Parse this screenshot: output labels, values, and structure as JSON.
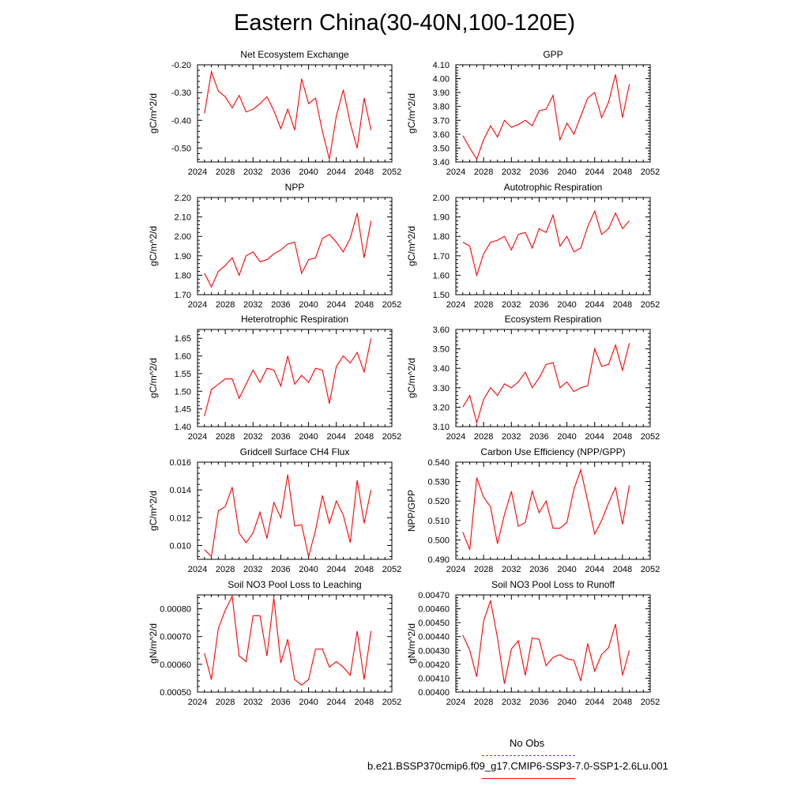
{
  "title": "Eastern China(30-40N,100-120E)",
  "legend": {
    "obs_label": "No Obs",
    "obs_color": "#4a4ad0",
    "model_label": "b.e21.BSSP370cmip6.f09_g17.CMIP6-SSP3-7.0-SSP1-2.6Lu.001",
    "model_color": "#ff0000"
  },
  "chart_data": [
    {
      "type": "line",
      "title": "Net Ecosystem Exchange",
      "ylabel": "gC/m^2/d",
      "xlim": [
        2024,
        2052
      ],
      "xticks": [
        "2024",
        "2028",
        "2032",
        "2036",
        "2040",
        "2044",
        "2048",
        "2052"
      ],
      "ylim": [
        -0.55,
        -0.2
      ],
      "yticks": [
        "-0.20",
        "-0.30",
        "-0.40",
        "-0.50"
      ],
      "x": [
        2025,
        2026,
        2027,
        2028,
        2029,
        2030,
        2031,
        2032,
        2033,
        2034,
        2035,
        2036,
        2037,
        2038,
        2039,
        2040,
        2041,
        2042,
        2043,
        2044,
        2045,
        2046,
        2047,
        2048,
        2049
      ],
      "series": [
        {
          "values": [
            -0.375,
            -0.225,
            -0.295,
            -0.315,
            -0.355,
            -0.31,
            -0.37,
            -0.36,
            -0.34,
            -0.315,
            -0.365,
            -0.43,
            -0.36,
            -0.435,
            -0.25,
            -0.34,
            -0.32,
            -0.44,
            -0.54,
            -0.385,
            -0.29,
            -0.41,
            -0.5,
            -0.32,
            -0.435
          ]
        }
      ]
    },
    {
      "type": "line",
      "title": "GPP",
      "ylabel": "gC/m^2/d",
      "xlim": [
        2024,
        2052
      ],
      "xticks": [
        "2024",
        "2028",
        "2032",
        "2036",
        "2040",
        "2044",
        "2048",
        "2052"
      ],
      "ylim": [
        3.4,
        4.1
      ],
      "yticks": [
        "3.40",
        "3.50",
        "3.60",
        "3.70",
        "3.80",
        "3.90",
        "4.00",
        "4.10"
      ],
      "x": [
        2025,
        2026,
        2027,
        2028,
        2029,
        2030,
        2031,
        2032,
        2033,
        2034,
        2035,
        2036,
        2037,
        2038,
        2039,
        2040,
        2041,
        2042,
        2043,
        2044,
        2045,
        2046,
        2047,
        2048,
        2049
      ],
      "series": [
        {
          "values": [
            3.59,
            3.5,
            3.42,
            3.56,
            3.66,
            3.58,
            3.7,
            3.65,
            3.67,
            3.7,
            3.66,
            3.77,
            3.78,
            3.88,
            3.56,
            3.68,
            3.6,
            3.73,
            3.86,
            3.9,
            3.72,
            3.83,
            4.03,
            3.72,
            3.96
          ]
        }
      ]
    },
    {
      "type": "line",
      "title": "NPP",
      "ylabel": "gC/m^2/d",
      "xlim": [
        2024,
        2052
      ],
      "xticks": [
        "2024",
        "2028",
        "2032",
        "2036",
        "2040",
        "2044",
        "2048",
        "2052"
      ],
      "ylim": [
        1.7,
        2.2
      ],
      "yticks": [
        "1.70",
        "1.80",
        "1.90",
        "2.00",
        "2.10",
        "2.20"
      ],
      "x": [
        2025,
        2026,
        2027,
        2028,
        2029,
        2030,
        2031,
        2032,
        2033,
        2034,
        2035,
        2036,
        2037,
        2038,
        2039,
        2040,
        2041,
        2042,
        2043,
        2044,
        2045,
        2046,
        2047,
        2048,
        2049
      ],
      "series": [
        {
          "values": [
            1.81,
            1.74,
            1.82,
            1.85,
            1.89,
            1.8,
            1.9,
            1.92,
            1.87,
            1.88,
            1.91,
            1.93,
            1.96,
            1.97,
            1.81,
            1.88,
            1.89,
            1.99,
            2.01,
            1.97,
            1.92,
            1.99,
            2.12,
            1.89,
            2.08
          ]
        }
      ]
    },
    {
      "type": "line",
      "title": "Autotrophic Respiration",
      "ylabel": "gC/m^2/d",
      "xlim": [
        2024,
        2052
      ],
      "xticks": [
        "2024",
        "2028",
        "2032",
        "2036",
        "2040",
        "2044",
        "2048",
        "2052"
      ],
      "ylim": [
        1.5,
        2.0
      ],
      "yticks": [
        "1.50",
        "1.60",
        "1.70",
        "1.80",
        "1.90",
        "2.00"
      ],
      "x": [
        2025,
        2026,
        2027,
        2028,
        2029,
        2030,
        2031,
        2032,
        2033,
        2034,
        2035,
        2036,
        2037,
        2038,
        2039,
        2040,
        2041,
        2042,
        2043,
        2044,
        2045,
        2046,
        2047,
        2048,
        2049
      ],
      "series": [
        {
          "values": [
            1.77,
            1.75,
            1.6,
            1.71,
            1.77,
            1.78,
            1.8,
            1.73,
            1.81,
            1.82,
            1.74,
            1.84,
            1.82,
            1.91,
            1.75,
            1.8,
            1.72,
            1.74,
            1.85,
            1.93,
            1.81,
            1.84,
            1.92,
            1.84,
            1.88
          ]
        }
      ]
    },
    {
      "type": "line",
      "title": "Heterotrophic Respiration",
      "ylabel": "gC/m^2/d",
      "xlim": [
        2024,
        2052
      ],
      "xticks": [
        "2024",
        "2028",
        "2032",
        "2036",
        "2040",
        "2044",
        "2048",
        "2052"
      ],
      "ylim": [
        1.4,
        1.675
      ],
      "yticks": [
        "1.40",
        "1.45",
        "1.50",
        "1.55",
        "1.60",
        "1.65"
      ],
      "x": [
        2025,
        2026,
        2027,
        2028,
        2029,
        2030,
        2031,
        2032,
        2033,
        2034,
        2035,
        2036,
        2037,
        2038,
        2039,
        2040,
        2041,
        2042,
        2043,
        2044,
        2045,
        2046,
        2047,
        2048,
        2049
      ],
      "series": [
        {
          "values": [
            1.43,
            1.505,
            1.52,
            1.535,
            1.535,
            1.48,
            1.52,
            1.56,
            1.525,
            1.565,
            1.56,
            1.515,
            1.6,
            1.52,
            1.545,
            1.525,
            1.565,
            1.56,
            1.465,
            1.57,
            1.6,
            1.58,
            1.61,
            1.555,
            1.65
          ]
        }
      ]
    },
    {
      "type": "line",
      "title": "Ecosystem Respiration",
      "ylabel": "gC/m^2/d",
      "xlim": [
        2024,
        2052
      ],
      "xticks": [
        "2024",
        "2028",
        "2032",
        "2036",
        "2040",
        "2044",
        "2048",
        "2052"
      ],
      "ylim": [
        3.1,
        3.6
      ],
      "yticks": [
        "3.10",
        "3.20",
        "3.30",
        "3.40",
        "3.50",
        "3.60"
      ],
      "x": [
        2025,
        2026,
        2027,
        2028,
        2029,
        2030,
        2031,
        2032,
        2033,
        2034,
        2035,
        2036,
        2037,
        2038,
        2039,
        2040,
        2041,
        2042,
        2043,
        2044,
        2045,
        2046,
        2047,
        2048,
        2049
      ],
      "series": [
        {
          "values": [
            3.2,
            3.26,
            3.12,
            3.24,
            3.3,
            3.26,
            3.32,
            3.3,
            3.33,
            3.38,
            3.3,
            3.35,
            3.42,
            3.43,
            3.3,
            3.33,
            3.28,
            3.3,
            3.31,
            3.5,
            3.41,
            3.42,
            3.52,
            3.39,
            3.53
          ]
        }
      ]
    },
    {
      "type": "line",
      "title": "Gridcell Surface CH4 Flux",
      "ylabel": "gC/m^2/d",
      "xlim": [
        2024,
        2052
      ],
      "xticks": [
        "2024",
        "2028",
        "2032",
        "2036",
        "2040",
        "2044",
        "2048",
        "2052"
      ],
      "ylim": [
        0.009,
        0.016
      ],
      "yticks": [
        "0.010",
        "0.012",
        "0.014",
        "0.016"
      ],
      "x": [
        2025,
        2026,
        2027,
        2028,
        2029,
        2030,
        2031,
        2032,
        2033,
        2034,
        2035,
        2036,
        2037,
        2038,
        2039,
        2040,
        2041,
        2042,
        2043,
        2044,
        2045,
        2046,
        2047,
        2048,
        2049
      ],
      "series": [
        {
          "values": [
            0.0097,
            0.0092,
            0.0125,
            0.0128,
            0.0142,
            0.0109,
            0.0102,
            0.0109,
            0.0124,
            0.0105,
            0.0131,
            0.012,
            0.0151,
            0.0114,
            0.0115,
            0.0092,
            0.0111,
            0.0136,
            0.0116,
            0.0132,
            0.0122,
            0.0102,
            0.0147,
            0.0116,
            0.014
          ]
        }
      ]
    },
    {
      "type": "line",
      "title": "Carbon Use Efficiency (NPP/GPP)",
      "ylabel": "NPP/GPP",
      "xlim": [
        2024,
        2052
      ],
      "xticks": [
        "2024",
        "2028",
        "2032",
        "2036",
        "2040",
        "2044",
        "2048",
        "2052"
      ],
      "ylim": [
        0.49,
        0.54
      ],
      "yticks": [
        "0.490",
        "0.500",
        "0.510",
        "0.520",
        "0.530",
        "0.540"
      ],
      "x": [
        2025,
        2026,
        2027,
        2028,
        2029,
        2030,
        2031,
        2032,
        2033,
        2034,
        2035,
        2036,
        2037,
        2038,
        2039,
        2040,
        2041,
        2042,
        2043,
        2044,
        2045,
        2046,
        2047,
        2048,
        2049
      ],
      "series": [
        {
          "values": [
            0.504,
            0.495,
            0.532,
            0.522,
            0.517,
            0.498,
            0.513,
            0.525,
            0.507,
            0.509,
            0.525,
            0.514,
            0.52,
            0.506,
            0.506,
            0.509,
            0.526,
            0.536,
            0.52,
            0.503,
            0.51,
            0.519,
            0.527,
            0.508,
            0.528
          ]
        }
      ]
    },
    {
      "type": "line",
      "title": "Soil NO3 Pool Loss to Leaching",
      "ylabel": "gN/m^2/d",
      "xlim": [
        2024,
        2052
      ],
      "xticks": [
        "2024",
        "2028",
        "2032",
        "2036",
        "2040",
        "2044",
        "2048",
        "2052"
      ],
      "ylim": [
        0.0005,
        0.00085
      ],
      "yticks": [
        "0.00050",
        "0.00060",
        "0.00070",
        "0.00080"
      ],
      "x": [
        2025,
        2026,
        2027,
        2028,
        2029,
        2030,
        2031,
        2032,
        2033,
        2034,
        2035,
        2036,
        2037,
        2038,
        2039,
        2040,
        2041,
        2042,
        2043,
        2044,
        2045,
        2046,
        2047,
        2048,
        2049
      ],
      "series": [
        {
          "values": [
            0.00064,
            0.000545,
            0.00073,
            0.000795,
            0.000845,
            0.00063,
            0.00061,
            0.000775,
            0.000775,
            0.00063,
            0.00084,
            0.000605,
            0.00069,
            0.000545,
            0.000525,
            0.000545,
            0.000655,
            0.000655,
            0.00059,
            0.00061,
            0.00059,
            0.00056,
            0.00072,
            0.000545,
            0.00072
          ]
        }
      ]
    },
    {
      "type": "line",
      "title": "Soil NO3 Pool Loss to Runoff",
      "ylabel": "gN/m^2/d",
      "xlim": [
        2024,
        2052
      ],
      "xticks": [
        "2024",
        "2028",
        "2032",
        "2036",
        "2040",
        "2044",
        "2048",
        "2052"
      ],
      "ylim": [
        0.004,
        0.0047
      ],
      "yticks": [
        "0.00400",
        "0.00410",
        "0.00420",
        "0.00430",
        "0.00440",
        "0.00450",
        "0.00460",
        "0.00470"
      ],
      "x": [
        2025,
        2026,
        2027,
        2028,
        2029,
        2030,
        2031,
        2032,
        2033,
        2034,
        2035,
        2036,
        2037,
        2038,
        2039,
        2040,
        2041,
        2042,
        2043,
        2044,
        2045,
        2046,
        2047,
        2048,
        2049
      ],
      "series": [
        {
          "values": [
            0.00441,
            0.0043,
            0.00411,
            0.00451,
            0.00466,
            0.00439,
            0.00406,
            0.00431,
            0.00437,
            0.00412,
            0.00439,
            0.00438,
            0.00419,
            0.00425,
            0.00427,
            0.00424,
            0.00423,
            0.00408,
            0.00435,
            0.00415,
            0.00427,
            0.00432,
            0.00449,
            0.00412,
            0.0043
          ]
        }
      ]
    }
  ]
}
